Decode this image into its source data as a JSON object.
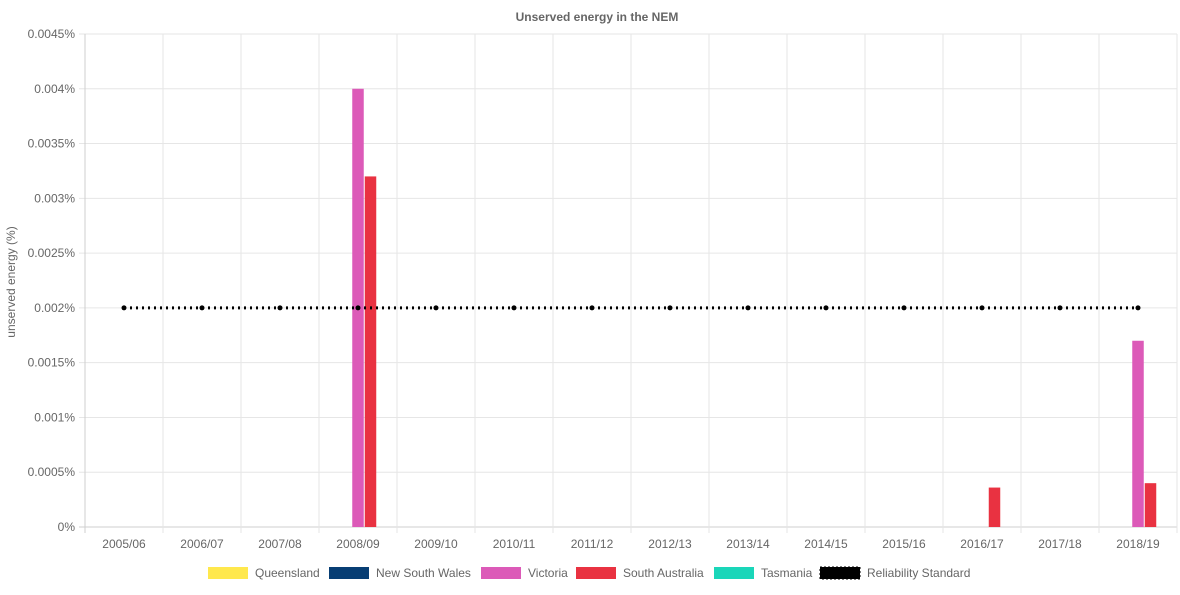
{
  "chart_data": {
    "type": "bar",
    "title": "Unserved energy in the NEM",
    "xlabel": "",
    "ylabel": "unserved energy (%)",
    "categories": [
      "2005/06",
      "2006/07",
      "2007/08",
      "2008/09",
      "2009/10",
      "2010/11",
      "2011/12",
      "2012/13",
      "2013/14",
      "2014/15",
      "2015/16",
      "2016/17",
      "2017/18",
      "2018/19"
    ],
    "ylim": [
      0,
      0.0045
    ],
    "yticks": [
      0,
      0.0005,
      0.001,
      0.0015,
      0.002,
      0.0025,
      0.003,
      0.0035,
      0.004,
      0.0045
    ],
    "ytick_labels": [
      "0%",
      "0.0005%",
      "0.001%",
      "0.0015%",
      "0.002%",
      "0.0025%",
      "0.003%",
      "0.0035%",
      "0.004%",
      "0.0045%"
    ],
    "grid": true,
    "legend_position": "bottom",
    "series": [
      {
        "name": "Queensland",
        "type": "bar",
        "color": "#ffe84d",
        "values": [
          0,
          0,
          0,
          0,
          0,
          0,
          0,
          0,
          0,
          0,
          0,
          0,
          0,
          0
        ]
      },
      {
        "name": "New South Wales",
        "type": "bar",
        "color": "#073e74",
        "values": [
          0,
          0,
          0,
          0,
          0,
          0,
          0,
          0,
          0,
          0,
          0,
          0,
          0,
          0
        ]
      },
      {
        "name": "Victoria",
        "type": "bar",
        "color": "#dc5ab8",
        "values": [
          0,
          0,
          0,
          0.004,
          0,
          0,
          0,
          0,
          0,
          0,
          0,
          0,
          0,
          0.0017
        ]
      },
      {
        "name": "South Australia",
        "type": "bar",
        "color": "#e93241",
        "values": [
          0,
          0,
          0,
          0.0032,
          0,
          0,
          0,
          0,
          0,
          0,
          0,
          0.00036,
          0,
          0.0004
        ]
      },
      {
        "name": "Tasmania",
        "type": "bar",
        "color": "#1ad6b9",
        "values": [
          0,
          0,
          0,
          0,
          0,
          0,
          0,
          0,
          0,
          0,
          0,
          0,
          0,
          0
        ]
      },
      {
        "name": "Reliability Standard",
        "type": "line",
        "style": "dotted",
        "color": "#000000",
        "values": [
          0.002,
          0.002,
          0.002,
          0.002,
          0.002,
          0.002,
          0.002,
          0.002,
          0.002,
          0.002,
          0.002,
          0.002,
          0.002,
          0.002
        ]
      }
    ]
  }
}
